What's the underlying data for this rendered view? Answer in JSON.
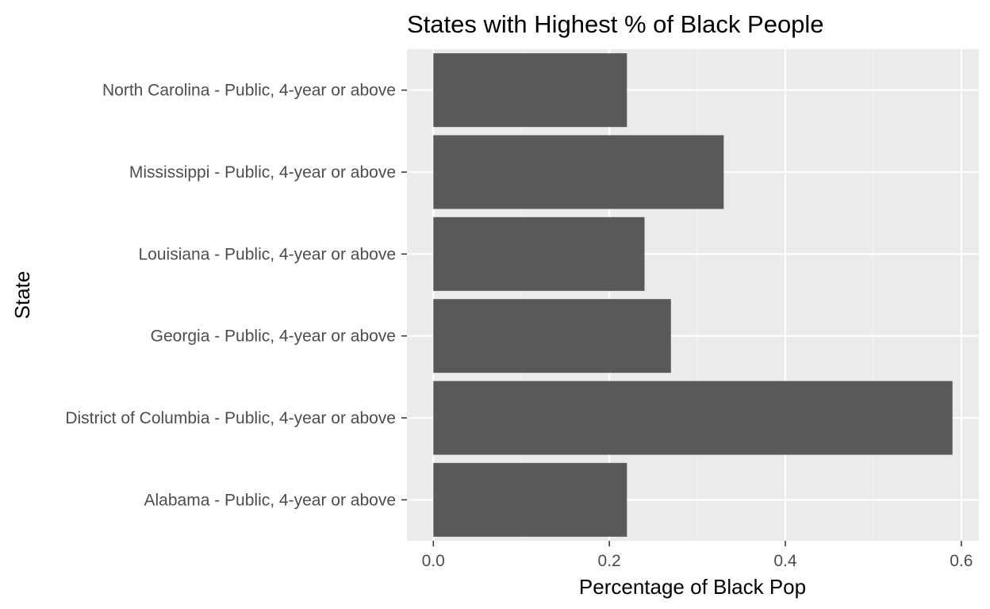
{
  "chart_data": {
    "type": "bar",
    "orientation": "horizontal",
    "title": "States with Highest % of Black People",
    "xlabel": "Percentage of Black Pop",
    "ylabel": "State",
    "categories": [
      "Alabama - Public, 4-year or above",
      "District of Columbia - Public, 4-year or above",
      "Georgia - Public, 4-year or above",
      "Louisiana - Public, 4-year or above",
      "Mississippi - Public, 4-year or above",
      "North Carolina - Public, 4-year or above"
    ],
    "values": [
      0.22,
      0.59,
      0.27,
      0.24,
      0.33,
      0.22
    ],
    "xlim": [
      -0.03,
      0.62
    ],
    "xticks": [
      0.0,
      0.2,
      0.4,
      0.6
    ],
    "xtick_labels": [
      "0.0",
      "0.2",
      "0.4",
      "0.6"
    ],
    "grid": true,
    "colors": {
      "bar": "#595959",
      "panel": "#ebebeb",
      "grid_major": "#ffffff",
      "grid_minor": "#f5f5f5",
      "tick": "#333333"
    }
  }
}
